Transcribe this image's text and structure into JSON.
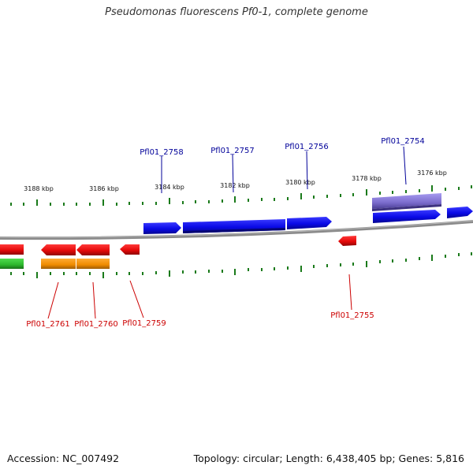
{
  "title": "Pseudomonas fluorescens Pf0-1, complete genome",
  "footer": {
    "accession": "Accession: NC_007492",
    "summary": "Topology: circular; Length: 6,438,405 bp; Genes: 5,816"
  },
  "scale_labels": [
    "3188 kbp",
    "3186 kbp",
    "3184 kbp",
    "3182 kbp",
    "3180 kbp",
    "3178 kbp",
    "3176 kbp"
  ],
  "gene_labels_forward": [
    "Pfl01_2758",
    "Pfl01_2757",
    "Pfl01_2756",
    "Pfl01_2754"
  ],
  "gene_labels_reverse": [
    "Pfl01_2761",
    "Pfl01_2760",
    "Pfl01_2759",
    "Pfl01_2755"
  ],
  "colors": {
    "forward_gene": "#0a0ae6",
    "reverse_gene": "#e60a0a",
    "label_forward": "#000099",
    "label_reverse": "#cc0000",
    "tick": "#1a7a1a",
    "backbone": "#808080",
    "orange_feature": "#f08c00",
    "green_feature": "#2db82d",
    "purple_feature": "#7b6ccc"
  }
}
